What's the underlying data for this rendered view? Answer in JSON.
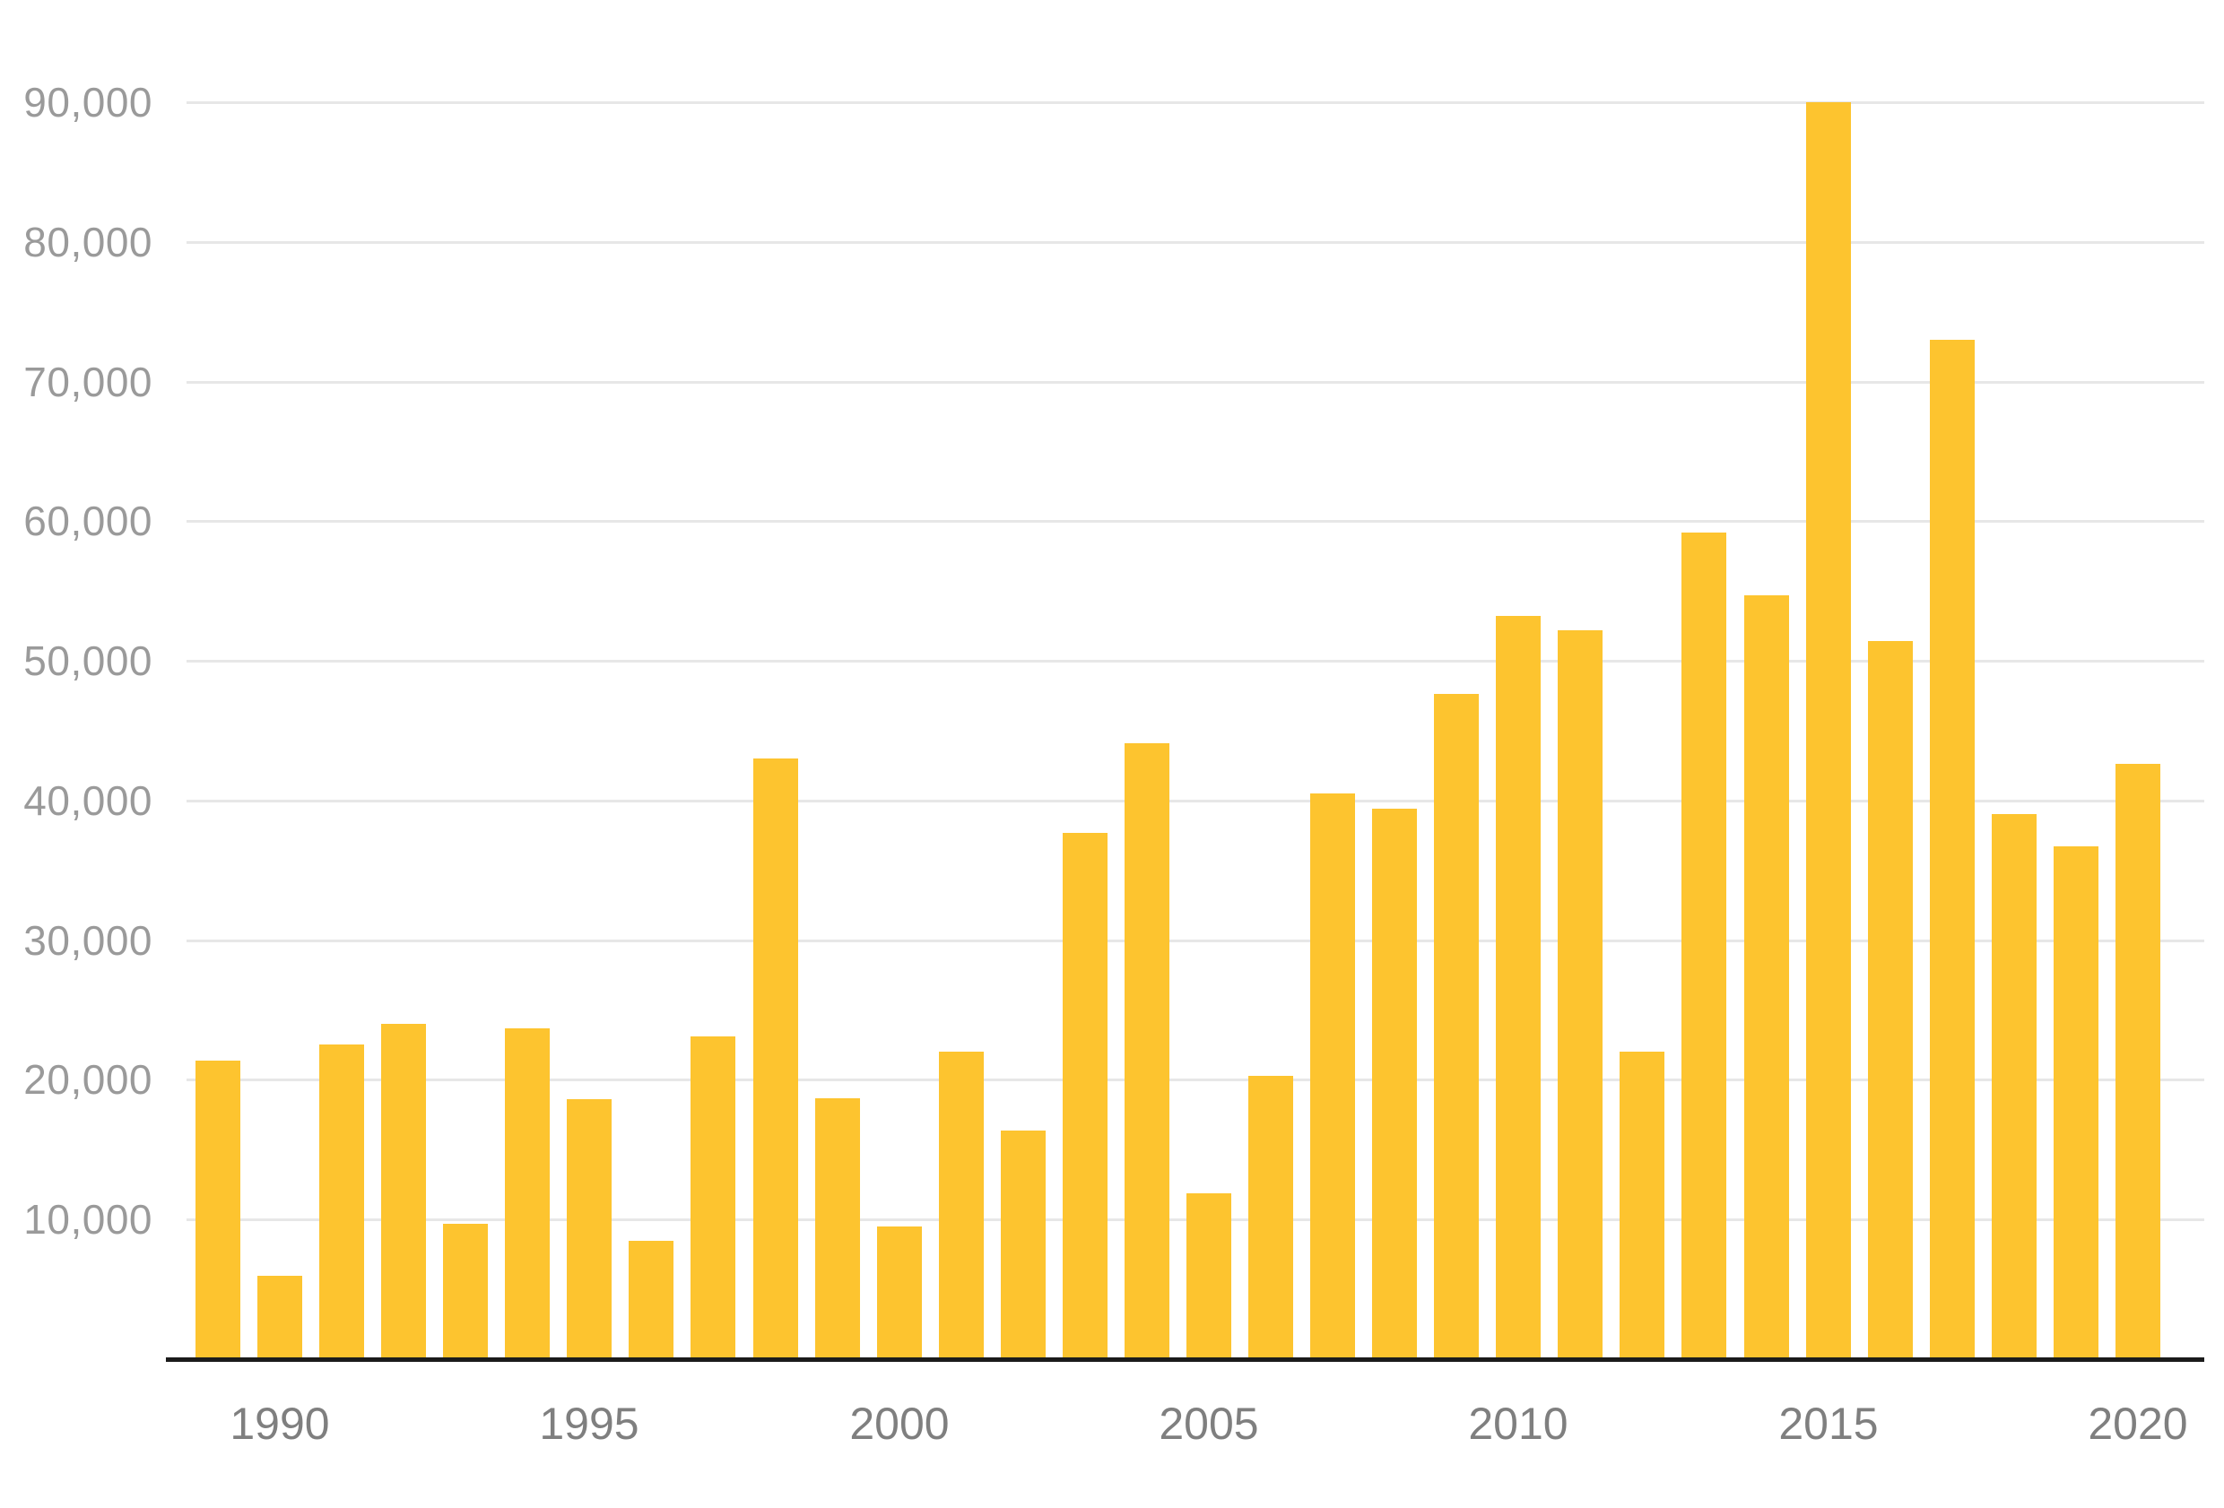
{
  "page": {
    "background_color": "#FFFFFF"
  },
  "chart_data": {
    "type": "bar",
    "title": "",
    "xlabel": "",
    "ylabel": "",
    "grid": true,
    "legend": false,
    "ylim": [
      0,
      92000
    ],
    "categories": [
      1989,
      1990,
      1991,
      1992,
      1993,
      1994,
      1995,
      1996,
      1997,
      1998,
      1999,
      2000,
      2001,
      2002,
      2003,
      2004,
      2005,
      2006,
      2007,
      2008,
      2009,
      2010,
      2011,
      2012,
      2013,
      2014,
      2015,
      2016,
      2017,
      2018,
      2019,
      2020
    ],
    "values": [
      21400,
      6000,
      22500,
      24000,
      9700,
      23700,
      18600,
      8500,
      23100,
      43000,
      18700,
      9500,
      22000,
      16400,
      37700,
      44100,
      11900,
      20300,
      40500,
      39400,
      47600,
      53200,
      52200,
      22000,
      59200,
      54700,
      90000,
      51400,
      73000,
      39000,
      36700,
      42600
    ],
    "y_ticks": [
      {
        "value": 10000,
        "label": "10,000"
      },
      {
        "value": 20000,
        "label": "20,000"
      },
      {
        "value": 30000,
        "label": "30,000"
      },
      {
        "value": 40000,
        "label": "40,000"
      },
      {
        "value": 50000,
        "label": "50,000"
      },
      {
        "value": 60000,
        "label": "60,000"
      },
      {
        "value": 70000,
        "label": "70,000"
      },
      {
        "value": 80000,
        "label": "80,000"
      },
      {
        "value": 90000,
        "label": "90,000"
      }
    ],
    "x_ticks": [
      {
        "year": 1990,
        "label": "1990"
      },
      {
        "year": 1995,
        "label": "1995"
      },
      {
        "year": 2000,
        "label": "2000"
      },
      {
        "year": 2005,
        "label": "2005"
      },
      {
        "year": 2010,
        "label": "2010"
      },
      {
        "year": 2015,
        "label": "2015"
      },
      {
        "year": 2020,
        "label": "2020"
      }
    ],
    "colors": {
      "bar": "#FDC42F",
      "gridline": "#E7E7E7",
      "axis_line": "#1B1B1B",
      "y_tick_label": "#9A9A9A",
      "x_tick_label": "#7F7F7F",
      "background": "#FFFFFF"
    }
  }
}
